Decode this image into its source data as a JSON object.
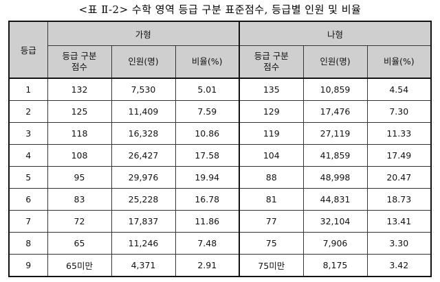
{
  "title": "<표 Ⅱ-2> 수학 영역 등급 구분 표준점수, 등급별 인원 및 비율",
  "headers": {
    "grade": "등급",
    "group_a": "가형",
    "group_b": "나형",
    "cut_score_line1": "등급 구분",
    "cut_score_line2": "점수",
    "people": "인원(명)",
    "ratio": "비율(%)"
  },
  "rows": [
    {
      "grade": "1",
      "a_cut": "132",
      "a_people": "7,530",
      "a_ratio": "5.01",
      "b_cut": "135",
      "b_people": "10,859",
      "b_ratio": "4.54"
    },
    {
      "grade": "2",
      "a_cut": "125",
      "a_people": "11,409",
      "a_ratio": "7.59",
      "b_cut": "129",
      "b_people": "17,476",
      "b_ratio": "7.30"
    },
    {
      "grade": "3",
      "a_cut": "118",
      "a_people": "16,328",
      "a_ratio": "10.86",
      "b_cut": "119",
      "b_people": "27,119",
      "b_ratio": "11.33"
    },
    {
      "grade": "4",
      "a_cut": "108",
      "a_people": "26,427",
      "a_ratio": "17.58",
      "b_cut": "104",
      "b_people": "41,859",
      "b_ratio": "17.49"
    },
    {
      "grade": "5",
      "a_cut": "95",
      "a_people": "29,976",
      "a_ratio": "19.94",
      "b_cut": "88",
      "b_people": "48,998",
      "b_ratio": "20.47"
    },
    {
      "grade": "6",
      "a_cut": "83",
      "a_people": "25,228",
      "a_ratio": "16.78",
      "b_cut": "81",
      "b_people": "44,831",
      "b_ratio": "18.73"
    },
    {
      "grade": "7",
      "a_cut": "72",
      "a_people": "17,837",
      "a_ratio": "11.86",
      "b_cut": "77",
      "b_people": "32,104",
      "b_ratio": "13.41"
    },
    {
      "grade": "8",
      "a_cut": "65",
      "a_people": "11,246",
      "a_ratio": "7.48",
      "b_cut": "75",
      "b_people": "7,906",
      "b_ratio": "3.30"
    },
    {
      "grade": "9",
      "a_cut": "65미만",
      "a_people": "4,371",
      "a_ratio": "2.91",
      "b_cut": "75미만",
      "b_people": "8,175",
      "b_ratio": "3.42"
    }
  ]
}
